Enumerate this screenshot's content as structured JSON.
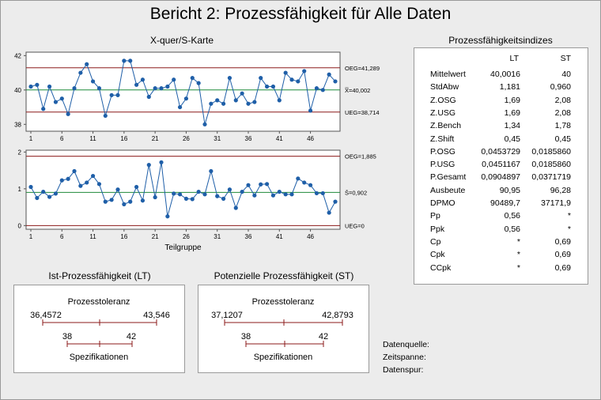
{
  "report": {
    "title": "Bericht 2: Prozessfähigkeit für Alle Daten"
  },
  "chart_data": [
    {
      "type": "line",
      "title": "X-quer/S-Karte",
      "chart": "xbar",
      "x": [
        1,
        2,
        3,
        4,
        5,
        6,
        7,
        8,
        9,
        10,
        11,
        12,
        13,
        14,
        15,
        16,
        17,
        18,
        19,
        20,
        21,
        22,
        23,
        24,
        25,
        26,
        27,
        28,
        29,
        30,
        31,
        32,
        33,
        34,
        35,
        36,
        37,
        38,
        39,
        40,
        41,
        42,
        43,
        44,
        45,
        46,
        47,
        48,
        49,
        50
      ],
      "values": [
        40.2,
        40.3,
        38.9,
        40.2,
        39.3,
        39.5,
        38.6,
        40.1,
        41.0,
        41.5,
        40.5,
        40.1,
        38.5,
        39.7,
        39.7,
        41.7,
        41.7,
        40.3,
        40.6,
        39.6,
        40.1,
        40.1,
        40.2,
        40.6,
        39.0,
        39.5,
        40.7,
        40.4,
        38.0,
        39.2,
        39.4,
        39.2,
        40.7,
        39.4,
        39.8,
        39.2,
        39.3,
        40.7,
        40.2,
        40.2,
        39.4,
        41.0,
        40.6,
        40.5,
        41.1,
        38.8,
        40.1,
        40.0,
        40.9,
        40.5
      ],
      "ylim": [
        37.6,
        42.2
      ],
      "yticks": [
        38,
        40,
        42
      ],
      "xticks": [
        1,
        6,
        11,
        16,
        21,
        26,
        31,
        36,
        41,
        46
      ],
      "xlabel": "",
      "limits": {
        "upper": 41.289,
        "upper_label": "OEG=41,289",
        "center": 40.002,
        "center_label": "X̿=40,002",
        "lower": 38.714,
        "lower_label": "UEG=38,714"
      }
    },
    {
      "type": "line",
      "chart": "s",
      "x": [
        1,
        2,
        3,
        4,
        5,
        6,
        7,
        8,
        9,
        10,
        11,
        12,
        13,
        14,
        15,
        16,
        17,
        18,
        19,
        20,
        21,
        22,
        23,
        24,
        25,
        26,
        27,
        28,
        29,
        30,
        31,
        32,
        33,
        34,
        35,
        36,
        37,
        38,
        39,
        40,
        41,
        42,
        43,
        44,
        45,
        46,
        47,
        48,
        49,
        50
      ],
      "values": [
        1.05,
        0.75,
        0.92,
        0.78,
        0.87,
        1.23,
        1.27,
        1.48,
        1.08,
        1.17,
        1.35,
        1.13,
        0.65,
        0.7,
        0.98,
        0.58,
        0.65,
        1.05,
        0.68,
        1.65,
        0.77,
        1.72,
        0.25,
        0.87,
        0.85,
        0.73,
        0.72,
        0.92,
        0.85,
        1.48,
        0.8,
        0.73,
        0.98,
        0.48,
        0.92,
        1.1,
        0.82,
        1.12,
        1.13,
        0.82,
        0.92,
        0.85,
        0.85,
        1.28,
        1.17,
        1.1,
        0.88,
        0.88,
        0.35,
        0.65
      ],
      "ylim": [
        -0.1,
        2.05
      ],
      "yticks": [
        0,
        1,
        2
      ],
      "xticks": [
        1,
        6,
        11,
        16,
        21,
        26,
        31,
        36,
        41,
        46
      ],
      "xlabel": "Teilgruppe",
      "limits": {
        "upper": 1.885,
        "upper_label": "OEG=1,885",
        "center": 0.902,
        "center_label": "S̄=0,902",
        "lower": 0,
        "lower_label": "UEG=0"
      }
    }
  ],
  "capability_lt": {
    "title": "Ist-Prozessfähigkeit (LT)",
    "tolerance_label": "Prozesstoleranz",
    "tol_low": "36,4572",
    "tol_high": "43,546",
    "spec_low": "38",
    "spec_high": "42",
    "spec_label": "Spezifikationen"
  },
  "capability_st": {
    "title": "Potenzielle Prozessfähigkeit (ST)",
    "tolerance_label": "Prozesstoleranz",
    "tol_low": "37,1207",
    "tol_high": "42,8793",
    "spec_low": "38",
    "spec_high": "42",
    "spec_label": "Spezifikationen"
  },
  "indices": {
    "title": "Prozessfähigkeitsindizes",
    "col_lt": "LT",
    "col_st": "ST",
    "rows": [
      {
        "name": "Mittelwert",
        "lt": "40,0016",
        "st": "40"
      },
      {
        "name": "StdAbw",
        "lt": "1,181",
        "st": "0,960"
      },
      {
        "name": "Z.OSG",
        "lt": "1,69",
        "st": "2,08"
      },
      {
        "name": "Z.USG",
        "lt": "1,69",
        "st": "2,08"
      },
      {
        "name": "Z.Bench",
        "lt": "1,34",
        "st": "1,78"
      },
      {
        "name": "Z.Shift",
        "lt": "0,45",
        "st": "0,45"
      },
      {
        "name": "P.OSG",
        "lt": "0,0453729",
        "st": "0,0185860"
      },
      {
        "name": "P.USG",
        "lt": "0,0451167",
        "st": "0,0185860"
      },
      {
        "name": "P.Gesamt",
        "lt": "0,0904897",
        "st": "0,0371719"
      },
      {
        "name": "Ausbeute",
        "lt": "90,95",
        "st": "96,28"
      },
      {
        "name": "DPMO",
        "lt": "90489,7",
        "st": "37171,9"
      },
      {
        "name": "Pp",
        "lt": "0,56",
        "st": "*"
      },
      {
        "name": "Ppk",
        "lt": "0,56",
        "st": "*"
      },
      {
        "name": "Cp",
        "lt": "*",
        "st": "0,69"
      },
      {
        "name": "Cpk",
        "lt": "*",
        "st": "0,69"
      },
      {
        "name": "CCpk",
        "lt": "*",
        "st": "0,69"
      }
    ]
  },
  "info": {
    "source": "Datenquelle:",
    "period": "Zeitspanne:",
    "trail": "Datenspur:"
  },
  "colors": {
    "limit": "#8b1a1a",
    "center": "#1f8a3a",
    "series": "#1f5fa8",
    "axis": "#555555"
  }
}
